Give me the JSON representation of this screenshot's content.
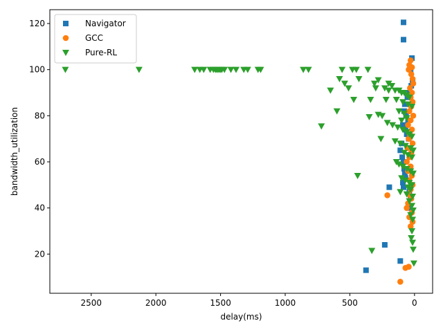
{
  "chart_data": {
    "type": "scatter",
    "xlabel": "delay(ms)",
    "ylabel": "bandwidth_utilization",
    "xlim": [
      2820,
      -140
    ],
    "ylim": [
      3,
      126
    ],
    "x_inverted": true,
    "xticks": [
      2500,
      2000,
      1500,
      1000,
      500,
      0
    ],
    "yticks": [
      20,
      40,
      60,
      80,
      100,
      120
    ],
    "grid": false,
    "legend_position": "top-left",
    "series": [
      {
        "name": "Navigator",
        "color": "#1f77b4",
        "marker": "square",
        "points": [
          [
            85,
            120.5
          ],
          [
            85,
            113
          ],
          [
            20,
            105
          ],
          [
            30,
            100
          ],
          [
            15,
            95
          ],
          [
            25,
            93
          ],
          [
            40,
            90
          ],
          [
            55,
            88
          ],
          [
            75,
            85
          ],
          [
            80,
            82
          ],
          [
            65,
            80
          ],
          [
            50,
            78
          ],
          [
            90,
            76
          ],
          [
            70,
            74
          ],
          [
            60,
            72
          ],
          [
            45,
            70
          ],
          [
            100,
            68
          ],
          [
            110,
            65
          ],
          [
            95,
            62
          ],
          [
            85,
            60
          ],
          [
            80,
            57
          ],
          [
            75,
            55
          ],
          [
            70,
            53
          ],
          [
            90,
            51
          ],
          [
            85,
            49
          ],
          [
            195,
            49
          ],
          [
            40,
            47
          ],
          [
            30,
            45
          ],
          [
            50,
            40
          ],
          [
            230,
            24
          ],
          [
            110,
            17
          ],
          [
            375,
            13
          ]
        ]
      },
      {
        "name": "GCC",
        "color": "#ff7f0e",
        "marker": "circle",
        "points": [
          [
            30,
            104
          ],
          [
            40,
            102
          ],
          [
            20,
            101
          ],
          [
            45,
            100
          ],
          [
            25,
            98
          ],
          [
            15,
            96
          ],
          [
            10,
            94
          ],
          [
            35,
            92
          ],
          [
            20,
            90
          ],
          [
            30,
            88
          ],
          [
            15,
            86
          ],
          [
            25,
            84
          ],
          [
            40,
            82
          ],
          [
            10,
            80
          ],
          [
            30,
            78
          ],
          [
            50,
            76
          ],
          [
            20,
            74
          ],
          [
            35,
            72
          ],
          [
            45,
            70
          ],
          [
            15,
            68
          ],
          [
            55,
            66
          ],
          [
            25,
            64
          ],
          [
            40,
            62
          ],
          [
            60,
            60
          ],
          [
            30,
            58
          ],
          [
            50,
            56
          ],
          [
            20,
            54
          ],
          [
            40,
            52
          ],
          [
            15,
            50
          ],
          [
            30,
            48
          ],
          [
            45,
            46
          ],
          [
            210,
            45.5
          ],
          [
            25,
            44
          ],
          [
            50,
            42
          ],
          [
            60,
            40
          ],
          [
            20,
            38
          ],
          [
            40,
            36
          ],
          [
            15,
            34
          ],
          [
            30,
            32
          ],
          [
            70,
            14
          ],
          [
            45,
            14.5
          ],
          [
            110,
            8
          ]
        ]
      },
      {
        "name": "Pure-RL",
        "color": "#2ca02c",
        "marker": "triangle-down",
        "points": [
          [
            2700,
            100
          ],
          [
            2130,
            100
          ],
          [
            1700,
            100
          ],
          [
            1660,
            100
          ],
          [
            1630,
            100
          ],
          [
            1580,
            100
          ],
          [
            1555,
            100
          ],
          [
            1540,
            100
          ],
          [
            1530,
            100
          ],
          [
            1520,
            100
          ],
          [
            1510,
            100
          ],
          [
            1500,
            100
          ],
          [
            1490,
            100
          ],
          [
            1470,
            100
          ],
          [
            1420,
            100
          ],
          [
            1380,
            100
          ],
          [
            1320,
            100
          ],
          [
            1290,
            100
          ],
          [
            1210,
            100
          ],
          [
            1190,
            100
          ],
          [
            860,
            100
          ],
          [
            820,
            100
          ],
          [
            560,
            100
          ],
          [
            480,
            100
          ],
          [
            450,
            100
          ],
          [
            360,
            100
          ],
          [
            580,
            96
          ],
          [
            430,
            96
          ],
          [
            280,
            95.5
          ],
          [
            540,
            94
          ],
          [
            310,
            94
          ],
          [
            200,
            94
          ],
          [
            175,
            93
          ],
          [
            230,
            92
          ],
          [
            510,
            92
          ],
          [
            300,
            92
          ],
          [
            650,
            91
          ],
          [
            200,
            91
          ],
          [
            150,
            91
          ],
          [
            120,
            91
          ],
          [
            100,
            90
          ],
          [
            80,
            90
          ],
          [
            60,
            89
          ],
          [
            40,
            88
          ],
          [
            470,
            87
          ],
          [
            340,
            87
          ],
          [
            220,
            87
          ],
          [
            140,
            87
          ],
          [
            90,
            86
          ],
          [
            50,
            85
          ],
          [
            20,
            84
          ],
          [
            600,
            82
          ],
          [
            120,
            82
          ],
          [
            80,
            81
          ],
          [
            280,
            80.5
          ],
          [
            250,
            80
          ],
          [
            350,
            79.5
          ],
          [
            60,
            79
          ],
          [
            100,
            78
          ],
          [
            210,
            77
          ],
          [
            170,
            76
          ],
          [
            130,
            75
          ],
          [
            720,
            75.5
          ],
          [
            90,
            74
          ],
          [
            60,
            73
          ],
          [
            40,
            72
          ],
          [
            20,
            71
          ],
          [
            260,
            70
          ],
          [
            150,
            69
          ],
          [
            110,
            68
          ],
          [
            70,
            67
          ],
          [
            30,
            66
          ],
          [
            10,
            65
          ],
          [
            80,
            64
          ],
          [
            50,
            63
          ],
          [
            20,
            62
          ],
          [
            140,
            60
          ],
          [
            120,
            59
          ],
          [
            90,
            58
          ],
          [
            60,
            57
          ],
          [
            30,
            56
          ],
          [
            10,
            55
          ],
          [
            440,
            54
          ],
          [
            100,
            53
          ],
          [
            70,
            52
          ],
          [
            40,
            51
          ],
          [
            20,
            50
          ],
          [
            50,
            49
          ],
          [
            30,
            48
          ],
          [
            110,
            47
          ],
          [
            60,
            46
          ],
          [
            15,
            45
          ],
          [
            40,
            43
          ],
          [
            20,
            41
          ],
          [
            10,
            39
          ],
          [
            30,
            37
          ],
          [
            15,
            35
          ],
          [
            20,
            30
          ],
          [
            25,
            27
          ],
          [
            15,
            25
          ],
          [
            10,
            22
          ],
          [
            330,
            21.5
          ],
          [
            5,
            16
          ]
        ]
      }
    ]
  }
}
